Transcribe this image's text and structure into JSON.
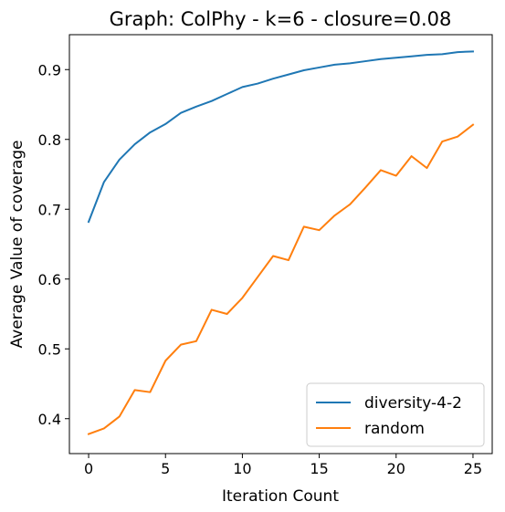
{
  "chart_data": {
    "type": "line",
    "title": "Graph: ColPhy - k=6 - closure=0.08",
    "xlabel": "Iteration Count",
    "ylabel": "Average Value of coverage",
    "xlim": [
      -1.25,
      26.25
    ],
    "ylim": [
      0.35,
      0.95
    ],
    "xticks": [
      0,
      5,
      10,
      15,
      20,
      25
    ],
    "xtick_labels": [
      "0",
      "5",
      "10",
      "15",
      "20",
      "25"
    ],
    "yticks": [
      0.4,
      0.5,
      0.6,
      0.7,
      0.8,
      0.9
    ],
    "ytick_labels": [
      "0.4",
      "0.5",
      "0.6",
      "0.7",
      "0.8",
      "0.9"
    ],
    "grid": false,
    "legend_position": "lower-right",
    "x": [
      0,
      1,
      2,
      3,
      4,
      5,
      6,
      7,
      8,
      9,
      10,
      11,
      12,
      13,
      14,
      15,
      16,
      17,
      18,
      19,
      20,
      21,
      22,
      23,
      24,
      25
    ],
    "series": [
      {
        "name": "diversity-4-2",
        "color": "#1f77b4",
        "values": [
          0.682,
          0.739,
          0.771,
          0.793,
          0.81,
          0.822,
          0.838,
          0.847,
          0.855,
          0.865,
          0.875,
          0.88,
          0.887,
          0.893,
          0.899,
          0.903,
          0.907,
          0.909,
          0.912,
          0.915,
          0.917,
          0.919,
          0.921,
          0.922,
          0.925,
          0.926
        ]
      },
      {
        "name": "random",
        "color": "#ff7f0e",
        "values": [
          0.378,
          0.386,
          0.403,
          0.441,
          0.438,
          0.483,
          0.506,
          0.511,
          0.556,
          0.55,
          0.573,
          0.603,
          0.633,
          0.627,
          0.675,
          0.67,
          0.691,
          0.707,
          0.731,
          0.756,
          0.748,
          0.776,
          0.759,
          0.797,
          0.804,
          0.821
        ]
      }
    ]
  }
}
